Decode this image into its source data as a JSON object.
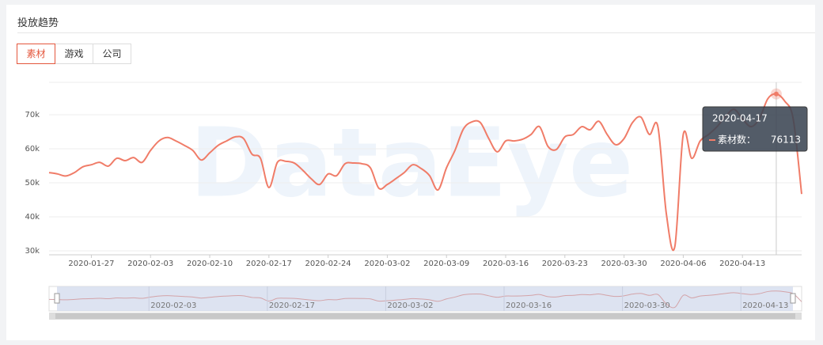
{
  "header": {
    "title": "投放趋势"
  },
  "tabs": {
    "items": [
      "素材",
      "游戏",
      "公司"
    ],
    "active": 0
  },
  "chart_data": {
    "type": "line",
    "watermark": "DataEye",
    "categories": [
      null,
      null,
      null,
      null,
      null,
      "2020-01-27",
      null,
      null,
      null,
      null,
      null,
      null,
      "2020-02-03",
      null,
      null,
      null,
      null,
      null,
      null,
      "2020-02-10",
      null,
      null,
      null,
      null,
      null,
      null,
      "2020-02-17",
      null,
      null,
      null,
      null,
      null,
      null,
      "2020-02-24",
      null,
      null,
      null,
      null,
      null,
      null,
      "2020-03-02",
      null,
      null,
      null,
      null,
      null,
      null,
      "2020-03-09",
      null,
      null,
      null,
      null,
      null,
      null,
      "2020-03-16",
      null,
      null,
      null,
      null,
      null,
      null,
      "2020-03-23",
      null,
      null,
      null,
      null,
      null,
      null,
      "2020-03-30",
      null,
      null,
      null,
      null,
      null,
      null,
      "2020-04-06",
      null,
      null,
      null,
      null,
      null,
      null,
      "2020-04-13",
      null,
      null,
      null,
      "2020-04-17",
      null,
      null,
      null
    ],
    "series": [
      {
        "name": "素材数：",
        "color": "#f07c68",
        "values": [
          53000,
          52600,
          52000,
          53000,
          54700,
          55300,
          56000,
          54900,
          57200,
          56500,
          57400,
          56000,
          59500,
          62300,
          63300,
          62300,
          61000,
          59500,
          56700,
          58800,
          61000,
          62300,
          63500,
          63000,
          58400,
          57200,
          48600,
          56000,
          56300,
          55800,
          53700,
          51200,
          49500,
          52600,
          52100,
          55600,
          55800,
          55600,
          54400,
          48400,
          49500,
          51200,
          53000,
          55300,
          54200,
          52100,
          47900,
          54400,
          59500,
          65800,
          67900,
          67700,
          63000,
          59100,
          62300,
          62300,
          62800,
          64200,
          66500,
          60700,
          59800,
          63500,
          64200,
          66500,
          65600,
          68100,
          64200,
          61200,
          63000,
          67700,
          69300,
          64200,
          66500,
          40900,
          31200,
          64200,
          57200,
          62300,
          64200,
          66500,
          69500,
          71600,
          68800,
          66500,
          68800,
          74700,
          76113,
          74000,
          68800,
          46700
        ]
      }
    ],
    "ylim": [
      30000,
      80000
    ],
    "yticks": [
      {
        "value": 30000,
        "label": "30k"
      },
      {
        "value": 40000,
        "label": "40k"
      },
      {
        "value": 50000,
        "label": "50k"
      },
      {
        "value": 60000,
        "label": "60k"
      },
      {
        "value": 70000,
        "label": "70k"
      }
    ],
    "grid": true,
    "tooltip_index": 86,
    "slider_labels": [
      12,
      26,
      40,
      54,
      68,
      82
    ]
  }
}
